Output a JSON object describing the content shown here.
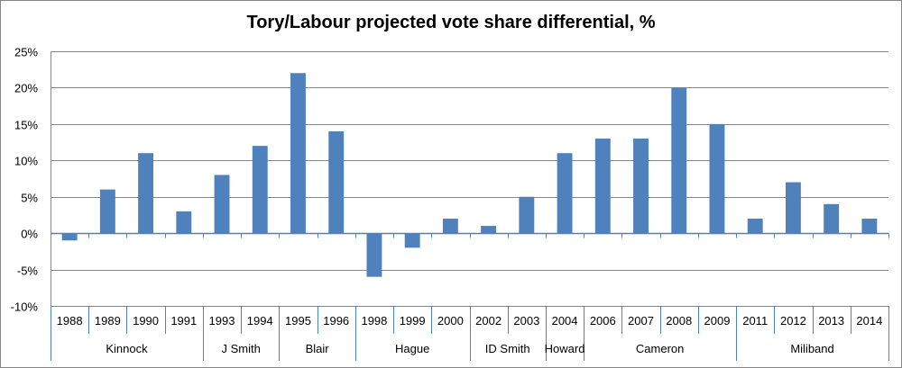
{
  "chart_data": {
    "type": "bar",
    "title": "Tory/Labour projected vote share differential, %",
    "xlabel": "",
    "ylabel": "",
    "ylim": [
      -10,
      25
    ],
    "yticks": [
      -10,
      -5,
      0,
      5,
      10,
      15,
      20,
      25
    ],
    "ytick_labels": [
      "-10%",
      "-5%",
      "0%",
      "5%",
      "10%",
      "15%",
      "20%",
      "25%"
    ],
    "grid": true,
    "legend": "none",
    "bar_color": "#4F81BD",
    "categories": [
      "1988",
      "1989",
      "1990",
      "1991",
      "1993",
      "1994",
      "1995",
      "1996",
      "1998",
      "1999",
      "2000",
      "2002",
      "2003",
      "2004",
      "2006",
      "2007",
      "2008",
      "2009",
      "2011",
      "2012",
      "2013",
      "2014"
    ],
    "values": [
      -1,
      6,
      11,
      3,
      8,
      12,
      22,
      14,
      -6,
      -2,
      2,
      1,
      5,
      11,
      13,
      13,
      20,
      15,
      2,
      7,
      4,
      2
    ],
    "groups": [
      {
        "label": "Kinnock",
        "count": 4
      },
      {
        "label": "J Smith",
        "count": 2
      },
      {
        "label": "Blair",
        "count": 2
      },
      {
        "label": "Hague",
        "count": 3
      },
      {
        "label": "ID Smith",
        "count": 2
      },
      {
        "label": "Howard",
        "count": 1
      },
      {
        "label": "Cameron",
        "count": 4
      },
      {
        "label": "Miliband",
        "count": 4
      }
    ]
  }
}
